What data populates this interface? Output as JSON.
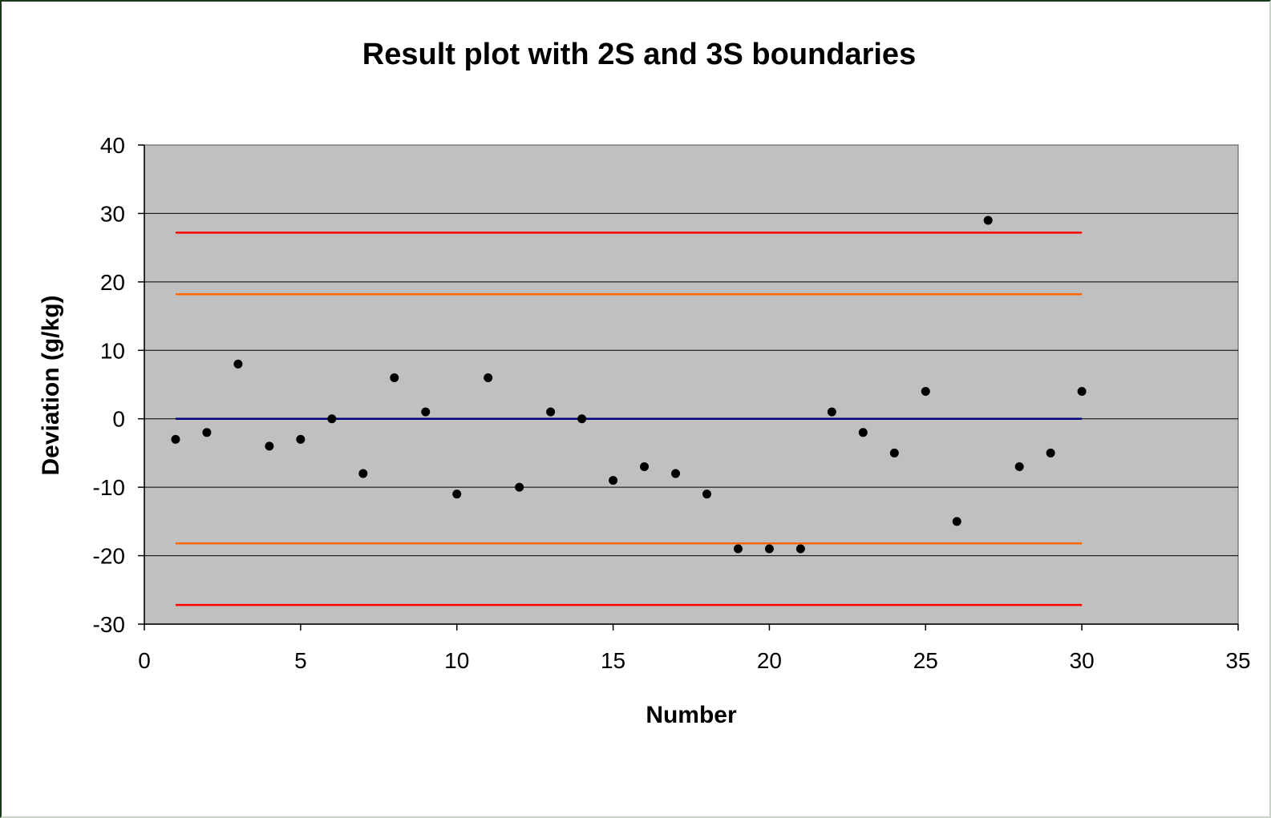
{
  "chart_data": {
    "type": "scatter",
    "title": "Result plot with 2S and 3S boundaries",
    "xlabel": "Number",
    "ylabel": "Deviation (g/kg)",
    "xlim": [
      0,
      35
    ],
    "ylim": [
      -30,
      40
    ],
    "x_ticks": [
      "0",
      "5",
      "10",
      "15",
      "20",
      "25",
      "30",
      "35"
    ],
    "y_ticks": [
      "40",
      "30",
      "20",
      "10",
      "0",
      "-10",
      "-20",
      "-30"
    ],
    "x_tick_values": [
      0,
      5,
      10,
      15,
      20,
      25,
      30,
      35
    ],
    "y_tick_values": [
      40,
      30,
      20,
      10,
      0,
      -10,
      -20,
      -30
    ],
    "grid": "horizontal",
    "legend": "none",
    "plot_background": "#c0c0c0",
    "points": {
      "x": [
        1,
        2,
        3,
        4,
        5,
        6,
        7,
        8,
        9,
        10,
        11,
        12,
        13,
        14,
        15,
        16,
        17,
        18,
        19,
        20,
        21,
        22,
        23,
        24,
        25,
        26,
        27,
        28,
        29,
        30
      ],
      "y": [
        -3,
        -2,
        8,
        -4,
        -3,
        0,
        -8,
        6,
        1,
        -11,
        6,
        -10,
        1,
        0,
        -9,
        -7,
        -8,
        -11,
        -19,
        -19,
        -19,
        1,
        -2,
        -5,
        4,
        -15,
        29,
        -7,
        -5,
        4
      ],
      "color": "#000000"
    },
    "lines": [
      {
        "y": 27.2,
        "x": [
          1,
          30
        ],
        "color": "#ff0000"
      },
      {
        "y": 18.2,
        "x": [
          1,
          30
        ],
        "color": "#ff6600"
      },
      {
        "y": 0,
        "x": [
          1,
          30
        ],
        "color": "#000080"
      },
      {
        "y": -18.2,
        "x": [
          1,
          30
        ],
        "color": "#ff6600"
      },
      {
        "y": -27.2,
        "x": [
          1,
          30
        ],
        "color": "#ff0000"
      }
    ]
  }
}
